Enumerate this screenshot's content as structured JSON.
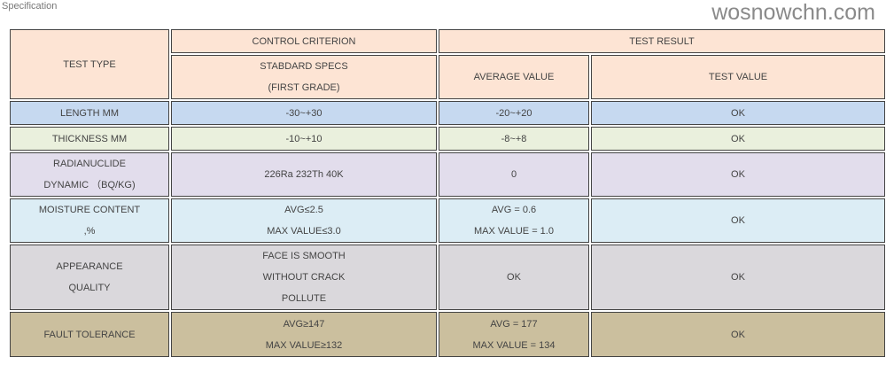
{
  "title": "Specification",
  "watermark": "wosnowchn.com",
  "header": {
    "test_type": "TEST TYPE",
    "control_criterion": "CONTROL CRITERION",
    "test_result": "TEST RESULT",
    "standard_specs": [
      "STABDARD SPECS",
      "(FIRST GRADE)"
    ],
    "average_value": "AVERAGE VALUE",
    "test_value": "TEST VALUE"
  },
  "rows": [
    {
      "type": [
        "LENGTH MM"
      ],
      "spec": [
        "-30~+30"
      ],
      "avg": [
        "-20~+20"
      ],
      "test": "OK",
      "color": "#c6d9f0"
    },
    {
      "type": [
        "THICKNESS  MM"
      ],
      "spec": [
        "-10~+10"
      ],
      "avg": [
        "-8~+8"
      ],
      "test": "OK",
      "color": "#eaf0dd"
    },
    {
      "type": [
        "RADIANUCLIDE",
        "DYNAMIC （BQ/KG)"
      ],
      "spec": [
        "226Ra 232Th 40K"
      ],
      "avg": [
        "0"
      ],
      "test": "OK",
      "color": "#e2ddec"
    },
    {
      "type": [
        "MOISTURE CONTENT",
        ",%"
      ],
      "spec": [
        "AVG≤2.5",
        "MAX VALUE≤3.0"
      ],
      "avg": [
        "AVG = 0.6",
        "MAX VALUE = 1.0"
      ],
      "test": "OK",
      "color": "#dcedf5"
    },
    {
      "type": [
        "APPEARANCE",
        "QUALITY"
      ],
      "spec": [
        "FACE IS SMOOTH",
        "WITHOUT CRACK",
        "POLLUTE"
      ],
      "avg": [
        "OK"
      ],
      "test": "OK",
      "color": "#dad8dc"
    },
    {
      "type": [
        "FAULT TOLERANCE"
      ],
      "spec": [
        "AVG≥147",
        "MAX VALUE≥132"
      ],
      "avg": [
        "AVG = 177",
        "MAX VALUE = 134"
      ],
      "test": "OK",
      "color": "#cbbf9e"
    }
  ]
}
